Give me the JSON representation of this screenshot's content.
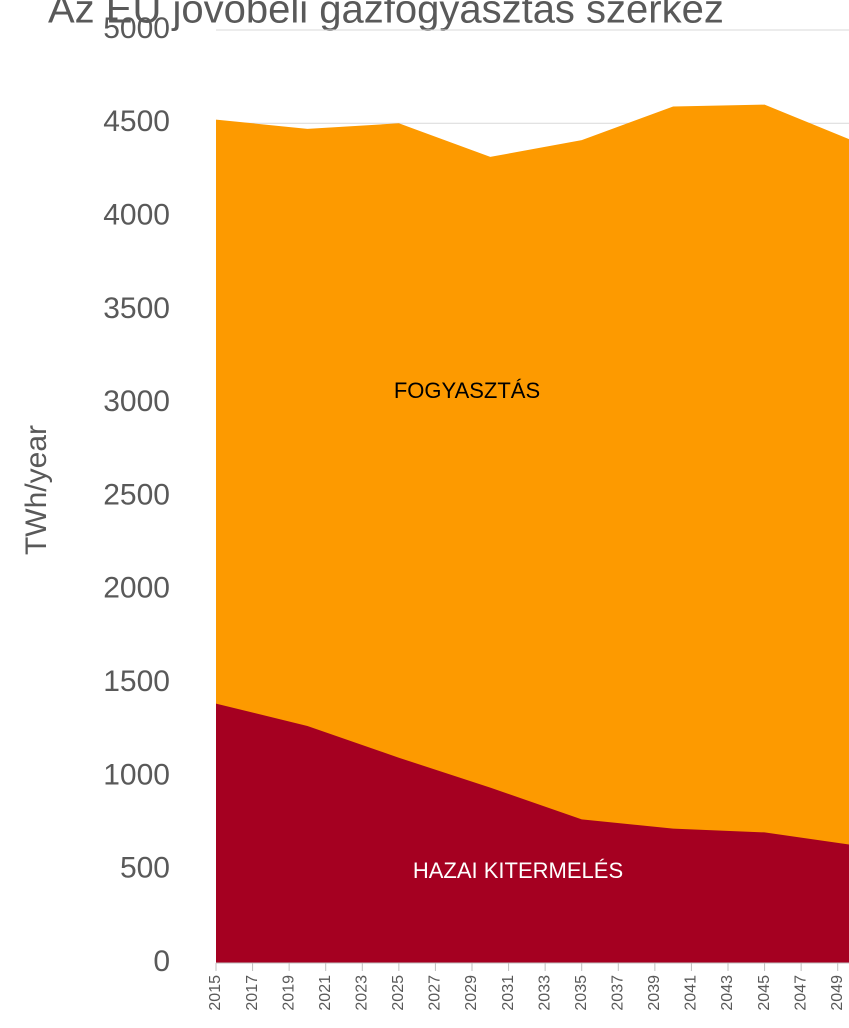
{
  "chart_data": {
    "type": "area",
    "title": "Az EU jövőbeli gázfogyasztás szerkez",
    "y_label": "TWh/year",
    "x": [
      2015,
      2020,
      2025,
      2030,
      2035,
      2040,
      2045,
      2050
    ],
    "series": [
      {
        "name": "FOGYASZTÁS",
        "color": "#fd9a00",
        "values": [
          4520,
          4470,
          4500,
          4320,
          4410,
          4590,
          4600,
          4400
        ]
      },
      {
        "name": "HAZAI KITERMELÉS",
        "color": "#a50021",
        "values": [
          1390,
          1270,
          1100,
          940,
          770,
          720,
          700,
          630
        ]
      }
    ],
    "xlim": [
      2015,
      2050
    ],
    "xticks": [
      2015,
      2017,
      2019,
      2021,
      2023,
      2025,
      2027,
      2029,
      2031,
      2033,
      2035,
      2037,
      2039,
      2041,
      2043,
      2045,
      2047,
      2049
    ],
    "ylim": [
      0,
      5000
    ],
    "yticks": [
      0,
      500,
      1000,
      1500,
      2000,
      2500,
      3000,
      3500,
      4000,
      4500,
      5000
    ],
    "grid": true
  }
}
